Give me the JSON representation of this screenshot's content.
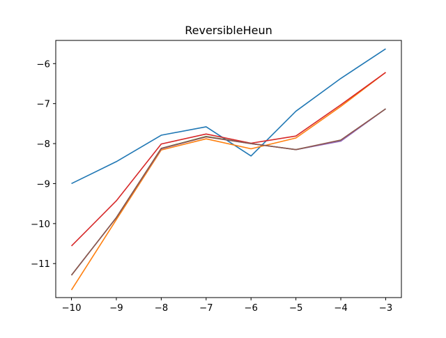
{
  "chart_data": {
    "type": "line",
    "title": "ReversibleHeun",
    "xlabel": "",
    "ylabel": "",
    "x": [
      -10,
      -9,
      -8,
      -7,
      -6,
      -5,
      -4,
      -3
    ],
    "xlim": [
      -10.35,
      -2.65
    ],
    "ylim": [
      -11.85,
      -5.42
    ],
    "xticks": [
      -10,
      -9,
      -8,
      -7,
      -6,
      -5,
      -4,
      -3
    ],
    "yticks": [
      -11,
      -10,
      -9,
      -8,
      -7,
      -6
    ],
    "grid": false,
    "legend": "none",
    "series": [
      {
        "color": "#1f77b4",
        "values": [
          -9.0,
          -8.45,
          -7.79,
          -7.58,
          -8.31,
          -7.19,
          -6.37,
          -5.63
        ]
      },
      {
        "color": "#ff7f0e",
        "values": [
          -11.66,
          -9.9,
          -8.16,
          -7.88,
          -8.13,
          -7.86,
          -7.07,
          -6.22
        ]
      },
      {
        "color": "#2ca02c",
        "values": [
          -11.29,
          -9.85,
          -8.12,
          -7.82,
          -8.0,
          -8.15,
          -7.93,
          -7.13
        ]
      },
      {
        "color": "#d62728",
        "values": [
          -10.56,
          -9.43,
          -8.01,
          -7.76,
          -7.99,
          -7.81,
          -7.03,
          -6.22
        ]
      },
      {
        "color": "#9467bd",
        "values": [
          -11.29,
          -9.85,
          -8.13,
          -7.83,
          -8.0,
          -8.15,
          -7.94,
          -7.13
        ]
      },
      {
        "color": "#8c564b",
        "values": [
          -11.29,
          -9.85,
          -8.12,
          -7.83,
          -8.0,
          -8.15,
          -7.91,
          -7.13
        ]
      }
    ]
  }
}
